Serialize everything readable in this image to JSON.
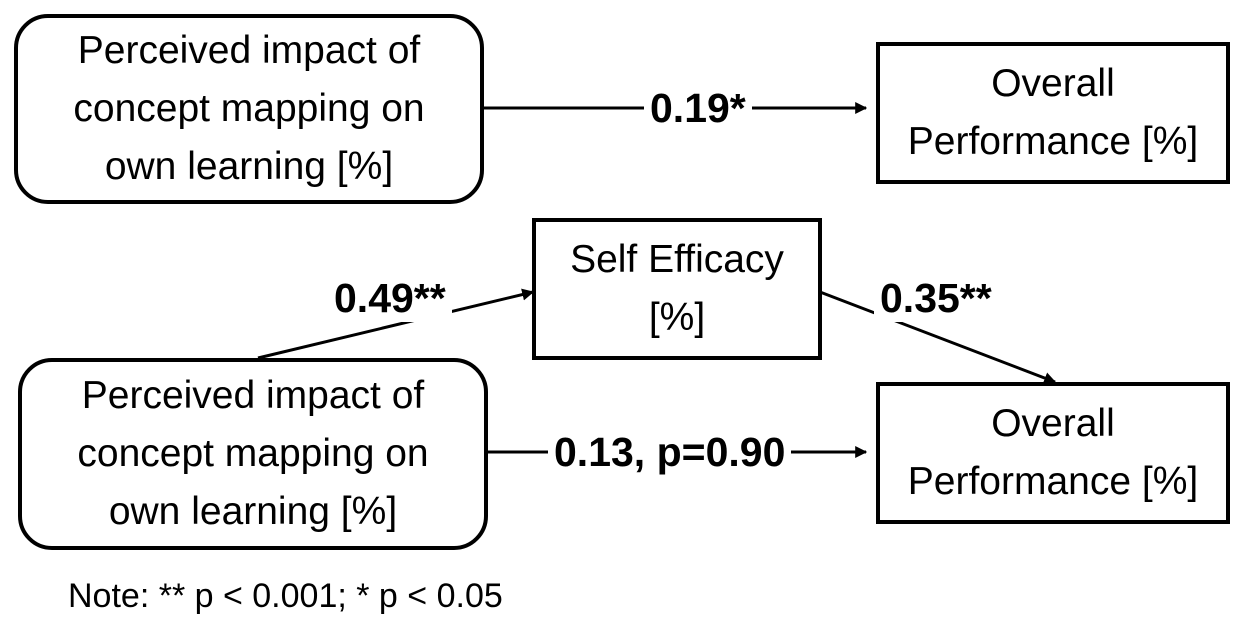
{
  "nodes": {
    "predictor_top": {
      "lines": [
        "Perceived impact of",
        "concept mapping on",
        "own learning [%]"
      ]
    },
    "outcome_top": {
      "lines": [
        "Overall",
        "Performance [%]"
      ]
    },
    "mediator": {
      "lines": [
        "Self Efficacy",
        "[%]"
      ]
    },
    "predictor_bottom": {
      "lines": [
        "Perceived impact of",
        "concept mapping on",
        "own learning [%]"
      ]
    },
    "outcome_bottom": {
      "lines": [
        "Overall",
        "Performance [%]"
      ]
    }
  },
  "paths": {
    "direct_total": "0.19*",
    "a_path": "0.49**",
    "b_path": "0.35**",
    "direct_mediated": "0.13, p=0.90"
  },
  "note": "Note: ** p < 0.001; * p < 0.05"
}
